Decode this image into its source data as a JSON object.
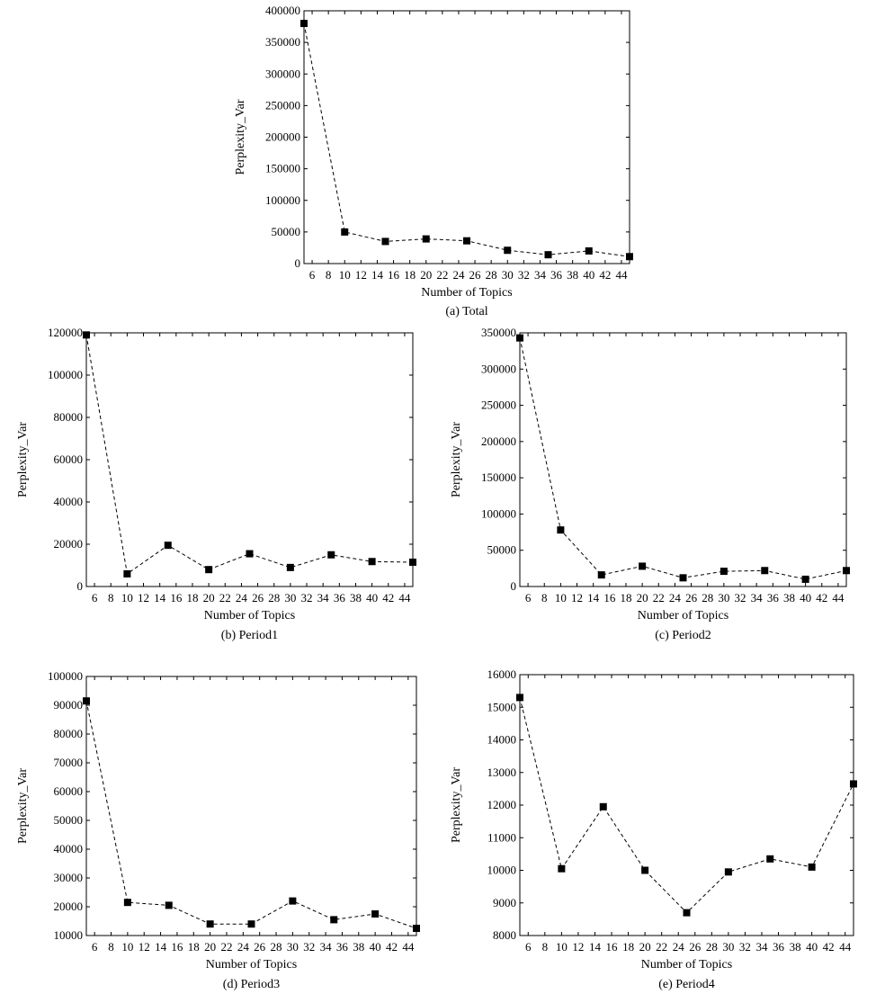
{
  "chart_data": [
    {
      "type": "line",
      "id": "total",
      "caption": "(a) Total",
      "xlabel": "Number of Topics",
      "ylabel": "Perplexity_Var",
      "xlim": [
        5,
        45
      ],
      "ylim": [
        0,
        400000
      ],
      "x_ticks": [
        6,
        8,
        10,
        12,
        14,
        16,
        18,
        20,
        22,
        24,
        26,
        28,
        30,
        32,
        34,
        36,
        38,
        40,
        42,
        44
      ],
      "y_ticks": [
        0,
        50000,
        100000,
        150000,
        200000,
        250000,
        300000,
        350000,
        400000
      ],
      "series": [
        {
          "x": [
            5,
            10,
            15,
            20,
            25,
            30,
            35,
            40,
            45
          ],
          "values": [
            380000,
            50000,
            35000,
            39000,
            36000,
            21000,
            14000,
            20000,
            11000
          ]
        }
      ]
    },
    {
      "type": "line",
      "id": "period1",
      "caption": "(b) Period1",
      "xlabel": "Number of Topics",
      "ylabel": "Perplexity_Var",
      "xlim": [
        5,
        45
      ],
      "ylim": [
        0,
        120000
      ],
      "x_ticks": [
        6,
        8,
        10,
        12,
        14,
        16,
        18,
        20,
        22,
        24,
        26,
        28,
        30,
        32,
        34,
        36,
        38,
        40,
        42,
        44
      ],
      "y_ticks": [
        0,
        20000,
        40000,
        60000,
        80000,
        100000,
        120000
      ],
      "series": [
        {
          "x": [
            5,
            10,
            15,
            20,
            25,
            30,
            35,
            40,
            45
          ],
          "values": [
            119000,
            6000,
            19500,
            8000,
            15500,
            9000,
            15000,
            11800,
            11500
          ]
        }
      ]
    },
    {
      "type": "line",
      "id": "period2",
      "caption": "(c) Period2",
      "xlabel": "Number of Topics",
      "ylabel": "Perplexity_Var",
      "xlim": [
        5,
        45
      ],
      "ylim": [
        0,
        350000
      ],
      "x_ticks": [
        6,
        8,
        10,
        12,
        14,
        16,
        18,
        20,
        22,
        24,
        26,
        28,
        30,
        32,
        34,
        36,
        38,
        40,
        42,
        44
      ],
      "y_ticks": [
        0,
        50000,
        100000,
        150000,
        200000,
        250000,
        300000,
        350000
      ],
      "series": [
        {
          "x": [
            5,
            10,
            15,
            20,
            25,
            30,
            35,
            40,
            45
          ],
          "values": [
            343000,
            78000,
            16000,
            28000,
            12000,
            21000,
            22000,
            10000,
            22000
          ]
        }
      ]
    },
    {
      "type": "line",
      "id": "period3",
      "caption": "(d) Period3",
      "xlabel": "Number of Topics",
      "ylabel": "Perplexity_Var",
      "xlim": [
        5,
        45
      ],
      "ylim": [
        10000,
        100000
      ],
      "x_ticks": [
        6,
        8,
        10,
        12,
        14,
        16,
        18,
        20,
        22,
        24,
        26,
        28,
        30,
        32,
        34,
        36,
        38,
        40,
        42,
        44
      ],
      "y_ticks": [
        10000,
        20000,
        30000,
        40000,
        50000,
        60000,
        70000,
        80000,
        90000,
        100000
      ],
      "series": [
        {
          "x": [
            5,
            10,
            15,
            20,
            25,
            30,
            35,
            40,
            45
          ],
          "values": [
            91500,
            21500,
            20500,
            14000,
            14000,
            22000,
            15500,
            17500,
            12500
          ]
        }
      ]
    },
    {
      "type": "line",
      "id": "period4",
      "caption": "(e) Period4",
      "xlabel": "Number of Topics",
      "ylabel": "Perplexity_Var",
      "xlim": [
        5,
        45
      ],
      "ylim": [
        8000,
        16000
      ],
      "x_ticks": [
        6,
        8,
        10,
        12,
        14,
        16,
        18,
        20,
        22,
        24,
        26,
        28,
        30,
        32,
        34,
        36,
        38,
        40,
        42,
        44
      ],
      "y_ticks": [
        8000,
        9000,
        10000,
        11000,
        12000,
        13000,
        14000,
        15000,
        16000
      ],
      "series": [
        {
          "x": [
            5,
            10,
            15,
            20,
            25,
            30,
            35,
            40,
            45
          ],
          "values": [
            15300,
            10050,
            11950,
            10000,
            8700,
            9950,
            10350,
            10100,
            12650
          ]
        }
      ]
    }
  ]
}
